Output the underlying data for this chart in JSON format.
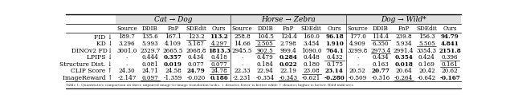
{
  "title_row": [
    "Cat → Dog",
    "Horse → Zebra",
    "Dog → Wild*"
  ],
  "col_groups": [
    [
      "Source",
      "DDIB",
      "PnP",
      "SDEdit",
      "Ours"
    ],
    [
      "Source",
      "DDIB",
      "PnP",
      "SDEdit",
      "Ours"
    ],
    [
      "Source",
      "DDIB",
      "PnP",
      "SDEdit",
      "Ours"
    ]
  ],
  "row_labels": [
    "FID ↓",
    "KD ↓",
    "DINOv2 FD↓",
    "LPIPS ↓",
    "Structure Dist. ↓",
    "CLIP Score ↑",
    "ImageReward ↑"
  ],
  "data": [
    [
      "189.7",
      "135.6",
      "167.1",
      "123.2",
      "113.2",
      "258.8",
      "104.5",
      "124.4",
      "160.0",
      "96.18",
      "177.0",
      "114.4",
      "239.8",
      "156.3",
      "94.79"
    ],
    [
      "3.296",
      "5.993",
      "4.109",
      "5.187",
      "4.297",
      "14.66",
      "2.505",
      "2.798",
      "3.454",
      "1.910",
      "4.909",
      "6.350",
      "5.934",
      "5.505",
      "4.841"
    ],
    [
      "3001.0",
      "2329.7",
      "2665.5",
      "2068.8",
      "1813.3",
      "2945.5",
      "902.5",
      "999.4",
      "1090.0",
      "764.1",
      "3299.8",
      "2973.4",
      "2991.4",
      "3354.3",
      "2151.8"
    ],
    [
      "·",
      "0.444",
      "0.357",
      "0.434",
      "0.418",
      "·",
      "0.479",
      "0.284",
      "0.448",
      "0.432",
      "·",
      "0.434",
      "0.354",
      "0.424",
      "0.396"
    ],
    [
      "·",
      "0.081",
      "0.019",
      "0.077",
      "0.077",
      "·",
      "0.184",
      "0.022",
      "0.180",
      "0.175",
      "·",
      "0.163",
      "0.018",
      "0.169",
      "0.161"
    ],
    [
      "24.30",
      "24.71",
      "24.58",
      "24.79",
      "24.78",
      "22.33",
      "22.94",
      "22.19",
      "23.08",
      "23.14",
      "20.52",
      "20.77",
      "20.64",
      "20.42",
      "20.62"
    ],
    [
      "-2.147",
      "0.097",
      "-1.359",
      "-0.020",
      "0.186",
      "-2.231",
      "-0.354",
      "-0.343",
      "-0.621",
      "-0.280",
      "-0.509",
      "-0.316",
      "-0.264",
      "-0.642",
      "-0.167"
    ]
  ],
  "bold": [
    [
      false,
      false,
      false,
      false,
      true,
      false,
      false,
      false,
      false,
      true,
      false,
      false,
      false,
      false,
      true
    ],
    [
      false,
      false,
      false,
      false,
      false,
      false,
      false,
      false,
      false,
      true,
      false,
      false,
      false,
      false,
      true
    ],
    [
      false,
      false,
      false,
      false,
      true,
      false,
      false,
      false,
      false,
      true,
      false,
      false,
      false,
      false,
      true
    ],
    [
      false,
      false,
      true,
      false,
      false,
      false,
      false,
      true,
      false,
      false,
      false,
      false,
      true,
      false,
      false
    ],
    [
      false,
      false,
      true,
      false,
      false,
      false,
      false,
      true,
      false,
      false,
      false,
      false,
      true,
      false,
      false
    ],
    [
      false,
      false,
      false,
      true,
      false,
      false,
      false,
      false,
      false,
      true,
      false,
      true,
      false,
      false,
      false
    ],
    [
      false,
      false,
      false,
      false,
      true,
      false,
      false,
      false,
      false,
      true,
      false,
      false,
      false,
      false,
      true
    ]
  ],
  "underline": [
    [
      false,
      false,
      false,
      true,
      false,
      false,
      true,
      false,
      false,
      false,
      false,
      true,
      false,
      false,
      false
    ],
    [
      false,
      false,
      false,
      false,
      true,
      false,
      true,
      false,
      false,
      false,
      false,
      false,
      false,
      true,
      false
    ],
    [
      false,
      false,
      false,
      false,
      false,
      false,
      true,
      false,
      false,
      false,
      false,
      true,
      false,
      false,
      false
    ],
    [
      false,
      false,
      false,
      false,
      true,
      false,
      false,
      false,
      false,
      true,
      false,
      false,
      false,
      false,
      true
    ],
    [
      false,
      false,
      false,
      false,
      true,
      false,
      false,
      false,
      false,
      false,
      false,
      false,
      false,
      false,
      true
    ],
    [
      false,
      false,
      false,
      false,
      true,
      false,
      false,
      false,
      true,
      false,
      false,
      false,
      false,
      false,
      false
    ],
    [
      false,
      true,
      false,
      false,
      false,
      false,
      false,
      true,
      false,
      false,
      false,
      false,
      true,
      false,
      false
    ]
  ],
  "footnote": "Table 1: Quantitative comparison on three unpaired image-to-image translation tasks. ↓ denotes lower is better while ↑ denotes higher is better. Bold indicates",
  "bg_color": "#ffffff",
  "header_bg": "#e0e0e0",
  "figsize": [
    6.4,
    1.33
  ],
  "dpi": 100
}
